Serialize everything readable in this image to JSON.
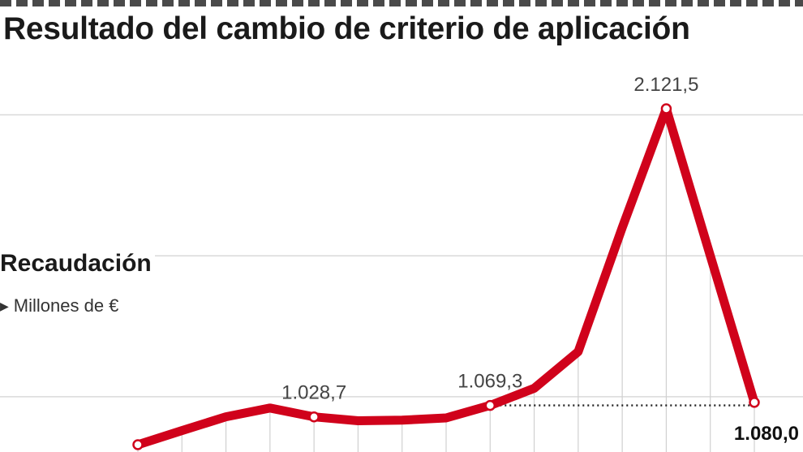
{
  "chart_data": {
    "type": "line",
    "title": "Resultado del cambio de criterio de aplicación",
    "series": [
      {
        "name": "Recaudación",
        "unit": "Millones de €",
        "values": [
          930,
          980,
          1029,
          1060,
          1028.7,
          1015,
          1017,
          1025,
          1069.3,
          1130,
          1260,
          1700,
          2121.5,
          1600,
          1080.0
        ]
      }
    ],
    "data_labels": [
      {
        "index": 4,
        "text": "1.028,7"
      },
      {
        "index": 8,
        "text": "1.069,3"
      },
      {
        "index": 12,
        "text": "2.121,5"
      },
      {
        "index": 14,
        "text": "1.080,0",
        "bold": true
      }
    ],
    "ylim": [
      900,
      2300
    ],
    "y_gridlines": [
      1100,
      1600,
      2100
    ],
    "grid": true,
    "reference_line": {
      "from_index": 8,
      "to_index": 14,
      "style": "dotted"
    }
  },
  "legend": {
    "label": "Recaudación",
    "unit_label": "Millones de €"
  },
  "colors": {
    "line": "#d0021b"
  }
}
